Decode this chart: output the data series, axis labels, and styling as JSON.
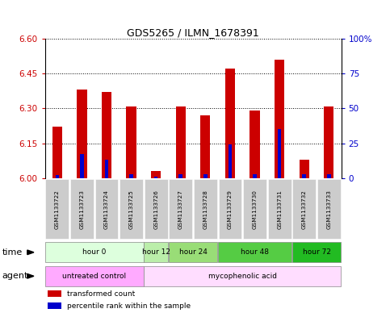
{
  "title": "GDS5265 / ILMN_1678391",
  "samples": [
    "GSM1133722",
    "GSM1133723",
    "GSM1133724",
    "GSM1133725",
    "GSM1133726",
    "GSM1133727",
    "GSM1133728",
    "GSM1133729",
    "GSM1133730",
    "GSM1133731",
    "GSM1133732",
    "GSM1133733"
  ],
  "transformed_count": [
    6.22,
    6.38,
    6.37,
    6.31,
    6.03,
    6.31,
    6.27,
    6.47,
    6.29,
    6.51,
    6.08,
    6.31
  ],
  "percentile_rank": [
    2,
    17,
    13,
    3,
    1,
    3,
    3,
    24,
    3,
    35,
    3,
    3
  ],
  "ymin": 6.0,
  "ymax": 6.6,
  "yticks": [
    6.0,
    6.15,
    6.3,
    6.45,
    6.6
  ],
  "right_yticks": [
    0,
    25,
    50,
    75,
    100
  ],
  "right_yticklabels": [
    "0",
    "25",
    "50",
    "75",
    "100%"
  ],
  "bar_color": "#cc0000",
  "percentile_color": "#0000cc",
  "bg_color": "#ffffff",
  "plot_bg": "#ffffff",
  "grid_color": "#000000",
  "time_groups": [
    {
      "label": "hour 0",
      "start": 0,
      "end": 3,
      "color": "#ddffdd"
    },
    {
      "label": "hour 12",
      "start": 4,
      "end": 4,
      "color": "#bbeeaa"
    },
    {
      "label": "hour 24",
      "start": 5,
      "end": 6,
      "color": "#99dd77"
    },
    {
      "label": "hour 48",
      "start": 7,
      "end": 9,
      "color": "#55cc44"
    },
    {
      "label": "hour 72",
      "start": 10,
      "end": 11,
      "color": "#22bb22"
    }
  ],
  "agent_groups": [
    {
      "label": "untreated control",
      "start": 0,
      "end": 3,
      "color": "#ffaaff"
    },
    {
      "label": "mycophenolic acid",
      "start": 4,
      "end": 11,
      "color": "#ffddff"
    }
  ],
  "left_tick_color": "#cc0000",
  "right_tick_color": "#0000cc",
  "time_label": "time",
  "agent_label": "agent",
  "legend_items": [
    {
      "label": "transformed count",
      "color": "#cc0000"
    },
    {
      "label": "percentile rank within the sample",
      "color": "#0000cc"
    }
  ],
  "sample_bg_color": "#cccccc",
  "bar_width": 0.4,
  "percentile_bar_width": 0.15
}
